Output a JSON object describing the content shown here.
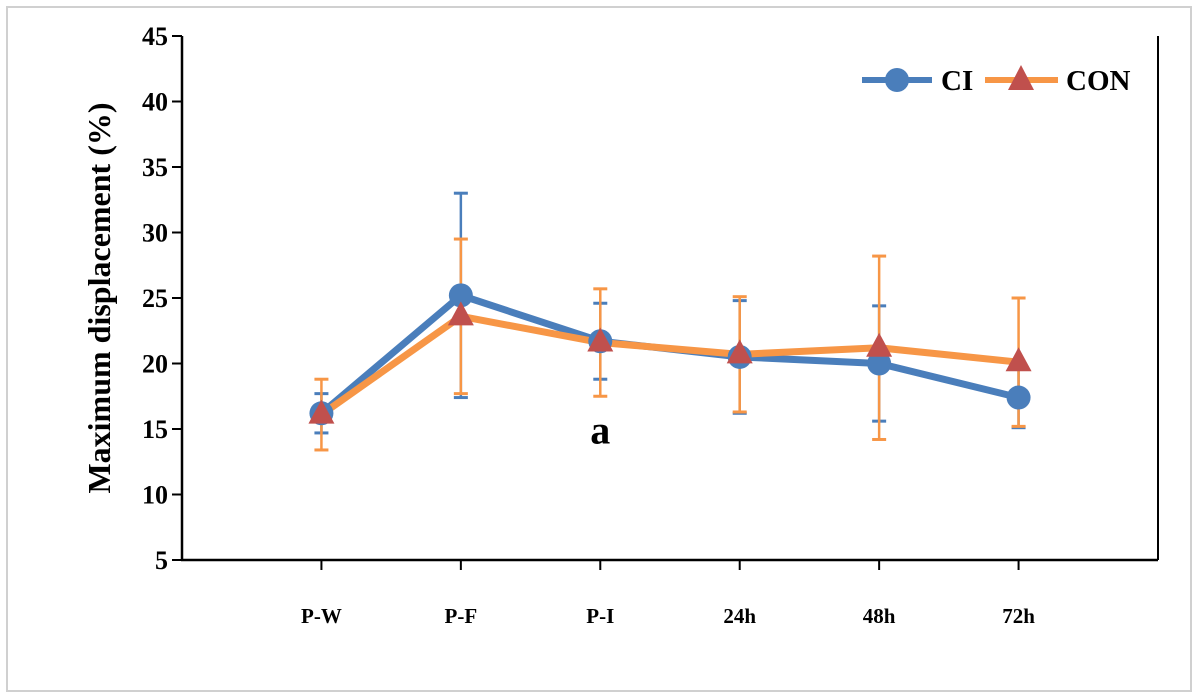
{
  "chart_data": {
    "type": "line",
    "title": "",
    "xlabel": "",
    "ylabel": "Maximum displacement (%)",
    "ylim": [
      5,
      45
    ],
    "yticks": [
      5,
      10,
      15,
      20,
      25,
      30,
      35,
      40,
      45
    ],
    "categories": [
      "P-W",
      "P-F",
      "P-I",
      "24h",
      "48h",
      "72h"
    ],
    "grid": false,
    "legend_position": "top-right",
    "series": [
      {
        "name": "CI",
        "color": "#4a7ebb",
        "marker": "circle",
        "values": [
          16.2,
          25.2,
          21.7,
          20.5,
          20.0,
          17.4
        ],
        "errors": [
          1.5,
          7.8,
          2.9,
          4.3,
          4.4,
          2.3
        ]
      },
      {
        "name": "CON",
        "color": "#f79646",
        "marker_color": "#c0504d",
        "marker": "triangle",
        "values": [
          16.1,
          23.6,
          21.6,
          20.7,
          21.2,
          20.1
        ],
        "errors": [
          2.7,
          5.9,
          4.1,
          4.4,
          7.0,
          4.9
        ]
      }
    ],
    "annotations": [
      {
        "text": "a",
        "category": "P-I",
        "y": 14.8
      }
    ]
  }
}
